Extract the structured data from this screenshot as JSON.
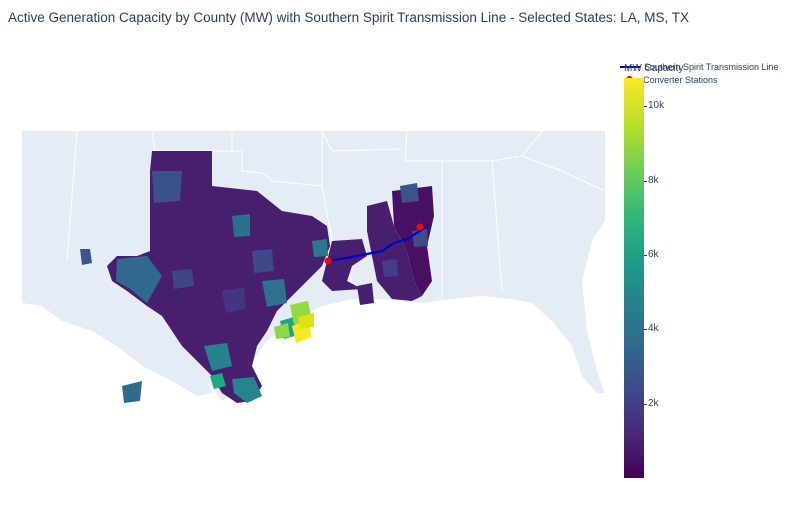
{
  "title": "Active Generation Capacity by County (MW) with Southern Spirit Transmission Line - Selected States: LA, MS, TX",
  "legend": {
    "line_label": "Southern Spirit Transmission Line",
    "marker_label": "Converter Stations",
    "line_color": "#0000cc",
    "marker_color": "#ff0000"
  },
  "colorbar": {
    "title": "MW Capacity",
    "colorscale": "Viridis",
    "ticks": [
      "2k",
      "4k",
      "6k",
      "8k",
      "10k"
    ],
    "tick_values": [
      2000,
      4000,
      6000,
      8000,
      10000
    ],
    "range": [
      0,
      11000
    ]
  },
  "map": {
    "land_color": "#e5ecf6",
    "border_color": "#ffffff",
    "states_shown": [
      "LA",
      "MS",
      "TX"
    ]
  }
}
